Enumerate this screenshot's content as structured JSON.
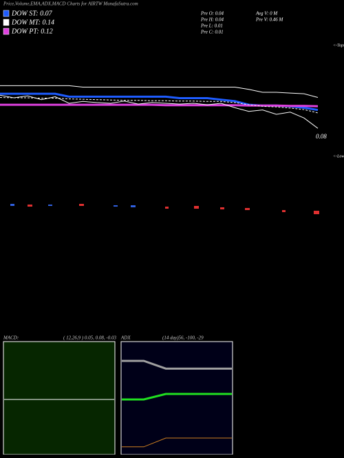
{
  "chart_data": [
    {
      "type": "line",
      "title": "Price,Volume,EMA,ADX,MACD Charts for AIRTW MunafaSutra.com",
      "ylim": [
        0,
        0.3
      ],
      "series": [
        {
          "name": "DOW ST: 0.07",
          "color": "#1e5cff",
          "width": 3,
          "values": [
            0.176,
            0.176,
            0.176,
            0.176,
            0.176,
            0.168,
            0.168,
            0.168,
            0.168,
            0.168,
            0.168,
            0.168,
            0.168,
            0.164,
            0.164,
            0.164,
            0.16,
            0.156,
            0.146,
            0.144,
            0.144,
            0.142,
            0.138,
            0.132
          ]
        },
        {
          "name": "DOW MT: 0.14",
          "color": "#ffffff",
          "width": 1,
          "values": [
            0.198,
            0.198,
            0.198,
            0.198,
            0.198,
            0.198,
            0.194,
            0.194,
            0.194,
            0.194,
            0.194,
            0.194,
            0.194,
            0.194,
            0.194,
            0.194,
            0.194,
            0.194,
            0.188,
            0.18,
            0.18,
            0.178,
            0.176,
            0.166
          ]
        },
        {
          "name": "DOW PT: 0.12",
          "color": "#e040e0",
          "width": 3,
          "values": [
            0.146,
            0.146,
            0.146,
            0.146,
            0.146,
            0.146,
            0.146,
            0.146,
            0.146,
            0.146,
            0.146,
            0.146,
            0.145,
            0.145,
            0.145,
            0.145,
            0.145,
            0.145,
            0.144,
            0.144,
            0.144,
            0.143,
            0.143,
            0.142
          ]
        },
        {
          "color": "#ffffff",
          "width": 1,
          "dash": true,
          "values": [
            0.166,
            0.165,
            0.165,
            0.164,
            0.164,
            0.162,
            0.161,
            0.16,
            0.159,
            0.158,
            0.158,
            0.157,
            0.157,
            0.156,
            0.156,
            0.155,
            0.155,
            0.152,
            0.146,
            0.142,
            0.14,
            0.137,
            0.133,
            0.124
          ]
        },
        {
          "color": "#ffffff",
          "width": 1,
          "values": [
            0.172,
            0.165,
            0.17,
            0.16,
            0.168,
            0.15,
            0.155,
            0.152,
            0.15,
            0.156,
            0.148,
            0.152,
            0.15,
            0.148,
            0.15,
            0.146,
            0.15,
            0.138,
            0.128,
            0.132,
            0.12,
            0.126,
            0.11,
            0.082
          ]
        }
      ],
      "annotations": [
        "Pre  O: 0.04",
        "Pre  H: 0.04",
        "Pre  L: 0.01",
        "Pre  C: 0.01",
        "Avg V: 0  M",
        "Pre  V: 0.46  M",
        "0.08",
        "<-Tops",
        "<-Lows"
      ]
    },
    {
      "type": "line",
      "title": "MACD:",
      "subtitle": "( 12,26,9 ) 0.05, 0.08, -0.03",
      "ylim": [
        -0.5,
        0.5
      ],
      "series": [
        {
          "color": "#ffffff",
          "width": 1,
          "values": [
            0,
            0,
            0,
            0,
            0,
            0
          ]
        }
      ]
    },
    {
      "type": "line",
      "title": "ADX",
      "subtitle": "(14  day)56, -100, -29",
      "ylim": [
        0,
        100
      ],
      "series": [
        {
          "color": "#a0a0a0",
          "width": 3,
          "values": [
            85,
            85,
            78,
            78,
            78,
            78
          ]
        },
        {
          "color": "#20e020",
          "width": 3,
          "values": [
            50,
            50,
            55,
            55,
            55,
            55
          ]
        },
        {
          "color": "#d08020",
          "width": 1,
          "values": [
            7,
            7,
            15,
            15,
            15,
            15
          ]
        }
      ]
    }
  ]
}
